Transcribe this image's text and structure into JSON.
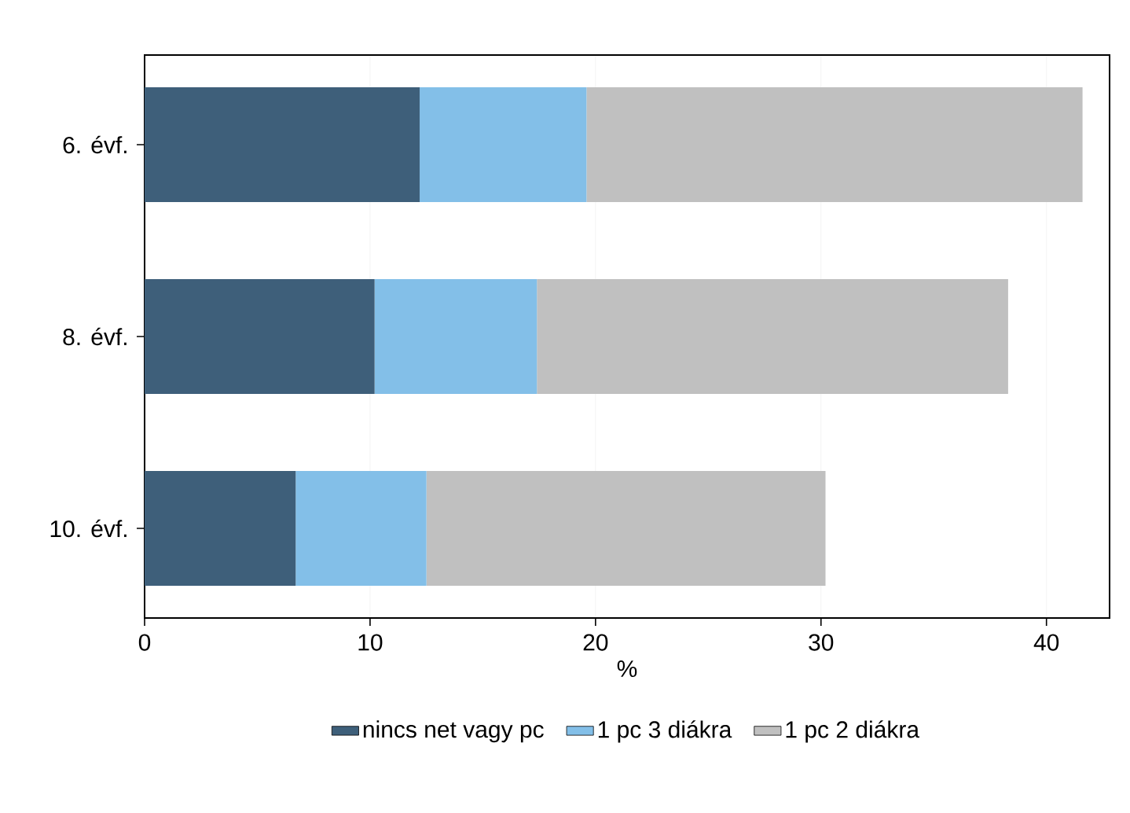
{
  "chart_data": {
    "type": "bar",
    "orientation": "horizontal",
    "stacked": true,
    "xlabel": "%",
    "categories": [
      "6. évf.",
      "8. évf.",
      "10. évf."
    ],
    "series": [
      {
        "name": "nincs net vagy pc",
        "color": "#3e5f7a",
        "values": [
          12.2,
          10.2,
          6.7
        ]
      },
      {
        "name": "1 pc 3 diákra",
        "color": "#83bfe8",
        "values": [
          7.4,
          7.2,
          5.8
        ]
      },
      {
        "name": "1 pc 2 diákra",
        "color": "#c0c0c0",
        "values": [
          22.0,
          20.9,
          17.7
        ]
      }
    ],
    "xlim": [
      0,
      42.8
    ],
    "xticks": [
      0,
      10,
      20,
      30,
      40
    ],
    "grid": "x",
    "legend": "bottom"
  }
}
